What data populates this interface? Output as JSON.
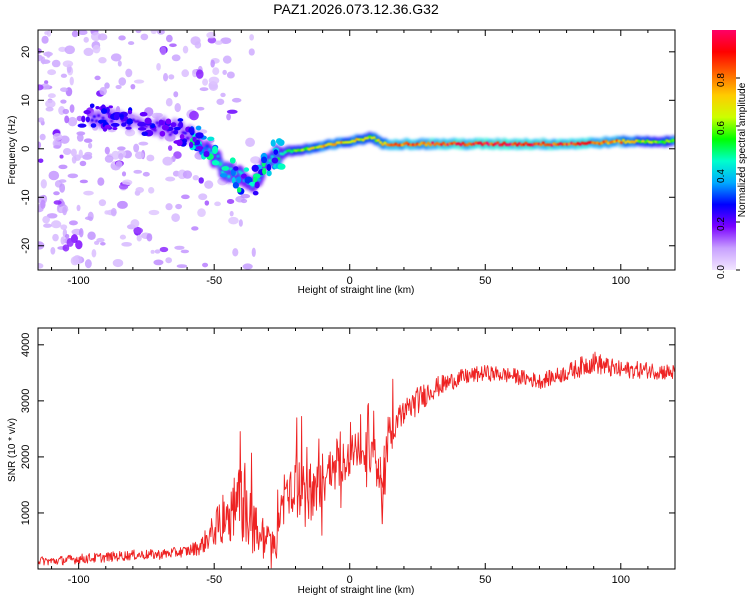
{
  "figure_title": "PAZ1.2026.073.12.36.G32",
  "chart_data": [
    {
      "type": "heatmap",
      "title": "PAZ1.2026.073.12.36.G32",
      "xlabel": "Height of straight line (km)",
      "ylabel": "Frequency (Hz)",
      "xlim": [
        -115,
        120
      ],
      "ylim": [
        -25,
        24.5
      ],
      "xticks": [
        -100,
        -50,
        0,
        50,
        100
      ],
      "xtick_labels": [
        "-100",
        "-50",
        "0",
        "50",
        "100"
      ],
      "yticks": [
        -20,
        -10,
        0,
        10,
        20
      ],
      "ytick_labels": [
        "-20",
        "-10",
        "0",
        "10",
        "20"
      ],
      "colorbar": {
        "label": "Normalized spectral amplitude",
        "range": [
          0.0,
          1.0
        ],
        "ticks": [
          0.0,
          0.2,
          0.4,
          0.6,
          0.8
        ],
        "tick_labels": [
          "0.0",
          "0.2",
          "0.4",
          "0.6",
          "0.8"
        ],
        "colormap": "rainbow",
        "colors": [
          "#f2e6ff",
          "#c8a0ff",
          "#7a00ff",
          "#0000ff",
          "#00aaff",
          "#00ffcc",
          "#00ff00",
          "#ccff00",
          "#ffcc00",
          "#ff6600",
          "#ff0000",
          "#ff0066"
        ]
      },
      "ridge": {
        "description": "dominant frequency track vs height",
        "height_km": [
          -95,
          -85,
          -75,
          -65,
          -58,
          -52,
          -47,
          -42,
          -38,
          -35,
          -31,
          -28,
          -22,
          -15,
          -10,
          -5,
          0,
          5,
          8,
          12,
          20,
          30,
          40,
          50,
          60,
          70,
          80,
          90,
          100,
          110,
          120
        ],
        "frequency_hz": [
          6.5,
          6.0,
          5.0,
          4.0,
          3.0,
          0.0,
          -4.0,
          -5.5,
          -6.5,
          -7.0,
          -3.0,
          -1.5,
          -0.5,
          0.0,
          0.5,
          1.0,
          1.5,
          2.0,
          2.5,
          1.0,
          1.0,
          1.0,
          1.0,
          1.0,
          1.0,
          1.0,
          1.0,
          1.2,
          1.5,
          1.5,
          1.5
        ],
        "amplitude": [
          0.22,
          0.22,
          0.2,
          0.22,
          0.25,
          0.38,
          0.45,
          0.42,
          0.4,
          0.38,
          0.4,
          0.5,
          0.55,
          0.65,
          0.72,
          0.75,
          0.72,
          0.68,
          0.62,
          0.72,
          0.85,
          0.88,
          0.9,
          0.92,
          0.92,
          0.9,
          0.9,
          0.85,
          0.8,
          0.6,
          0.55
        ]
      },
      "noise_scatter_region_km": [
        -115,
        -32
      ]
    },
    {
      "type": "line",
      "xlabel": "Height of straight line (km)",
      "ylabel": "SNR (10 * v/v)",
      "xlim": [
        -115,
        120
      ],
      "ylim": [
        0,
        4300
      ],
      "xticks": [
        -100,
        -50,
        0,
        50,
        100
      ],
      "xtick_labels": [
        "-100",
        "-50",
        "0",
        "50",
        "100"
      ],
      "yticks": [
        1000,
        2000,
        3000,
        4000
      ],
      "ytick_labels": [
        "1000",
        "2000",
        "3000",
        "4000"
      ],
      "series": [
        {
          "name": "SNR",
          "color": "#ee2222",
          "x": [
            -115,
            -110,
            -100,
            -90,
            -80,
            -70,
            -60,
            -55,
            -50,
            -45,
            -40,
            -35,
            -30,
            -27,
            -25,
            -20,
            -15,
            -10,
            -5,
            0,
            5,
            10,
            12,
            15,
            20,
            25,
            30,
            40,
            50,
            60,
            70,
            80,
            85,
            90,
            95,
            100,
            110,
            120
          ],
          "y": [
            150,
            140,
            180,
            210,
            250,
            260,
            320,
            400,
            700,
            1000,
            1200,
            700,
            450,
            400,
            1200,
            1500,
            1300,
            1600,
            1900,
            2000,
            2100,
            2050,
            1400,
            2500,
            2800,
            3000,
            3200,
            3400,
            3500,
            3450,
            3350,
            3500,
            3600,
            3700,
            3600,
            3550,
            3550,
            3500
          ],
          "noise_amplitude": [
            80,
            80,
            90,
            90,
            90,
            90,
            100,
            150,
            300,
            500,
            700,
            500,
            300,
            250,
            500,
            500,
            550,
            500,
            450,
            400,
            350,
            350,
            300,
            300,
            250,
            250,
            200,
            150,
            140,
            140,
            140,
            150,
            180,
            200,
            180,
            160,
            150,
            150
          ]
        }
      ]
    }
  ]
}
